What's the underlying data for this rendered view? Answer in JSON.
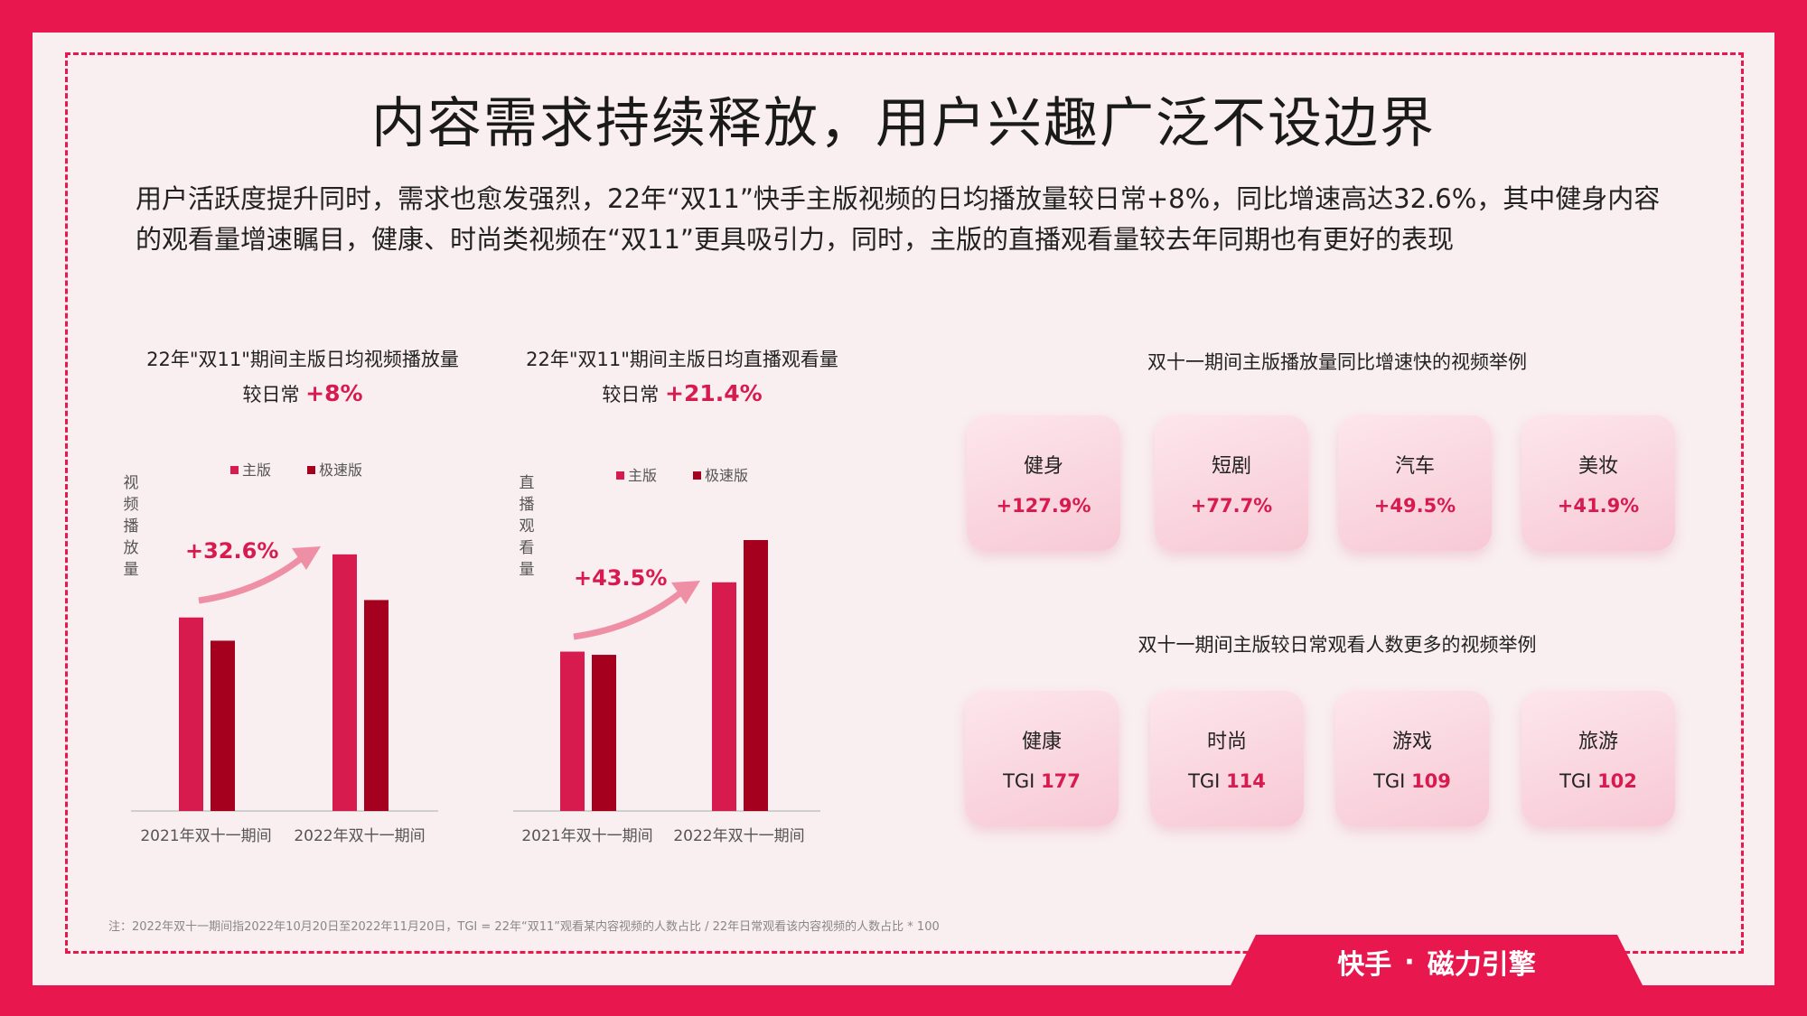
{
  "title": "内容需求持续释放，用户兴趣广泛不设边界",
  "intro": "用户活跃度提升同时，需求也愈发强烈，22年“双11”快手主版视频的日均播放量较日常+8%，同比增速高达32.6%，其中健身内容的观看量增速瞩目，健康、时尚类视频在“双11”更具吸引力，同时，主版的直播观看量较去年同期也有更好的表现",
  "colors": {
    "main": "#d81b4f",
    "express": "#a5001e",
    "arrow": "#ee8fa6",
    "frame": "#e8184f"
  },
  "chart1": {
    "title_line1": "22年\"双11\"期间主版日均视频播放量",
    "title_line2_prefix": "较日常",
    "title_line2_value": "+8%"
  },
  "chart2": {
    "title_line1": "22年\"双11\"期间主版日均直播观看量",
    "title_line2_prefix": "较日常",
    "title_line2_value": "+21.4%"
  },
  "chart_data": [
    {
      "type": "bar",
      "categories": [
        "2021年双十一期间",
        "2022年双十一期间"
      ],
      "series": [
        {
          "name": "主版",
          "values": [
            100,
            132.6
          ]
        },
        {
          "name": "极速版",
          "values": [
            88,
            109
          ]
        }
      ],
      "ylabel": "视频播放量",
      "annotation": "+32.6%",
      "legend": "top"
    },
    {
      "type": "bar",
      "categories": [
        "2021年双十一期间",
        "2022年双十一期间"
      ],
      "series": [
        {
          "name": "主版",
          "values": [
            100,
            143.5
          ]
        },
        {
          "name": "极速版",
          "values": [
            98,
            170
          ]
        }
      ],
      "ylabel": "直播观看量",
      "annotation": "+43.5%",
      "legend": "top"
    }
  ],
  "growth_section": {
    "title": "双十一期间主版播放量同比增速快的视频举例",
    "cards": [
      {
        "name": "健身",
        "value": "+127.9%"
      },
      {
        "name": "短剧",
        "value": "+77.7%"
      },
      {
        "name": "汽车",
        "value": "+49.5%"
      },
      {
        "name": "美妆",
        "value": "+41.9%"
      }
    ]
  },
  "tgi_section": {
    "title": "双十一期间主版较日常观看人数更多的视频举例",
    "prefix": "TGI",
    "cards": [
      {
        "name": "健康",
        "value": "177"
      },
      {
        "name": "时尚",
        "value": "114"
      },
      {
        "name": "游戏",
        "value": "109"
      },
      {
        "name": "旅游",
        "value": "102"
      }
    ]
  },
  "note": "注：2022年双十一期间指2022年10月20日至2022年11月20日，TGI = 22年“双11”观看某内容视频的人数占比 / 22年日常观看该内容视频的人数占比 * 100",
  "footer": {
    "brand1": "快手",
    "separator": "·",
    "brand2": "磁力引擎"
  }
}
